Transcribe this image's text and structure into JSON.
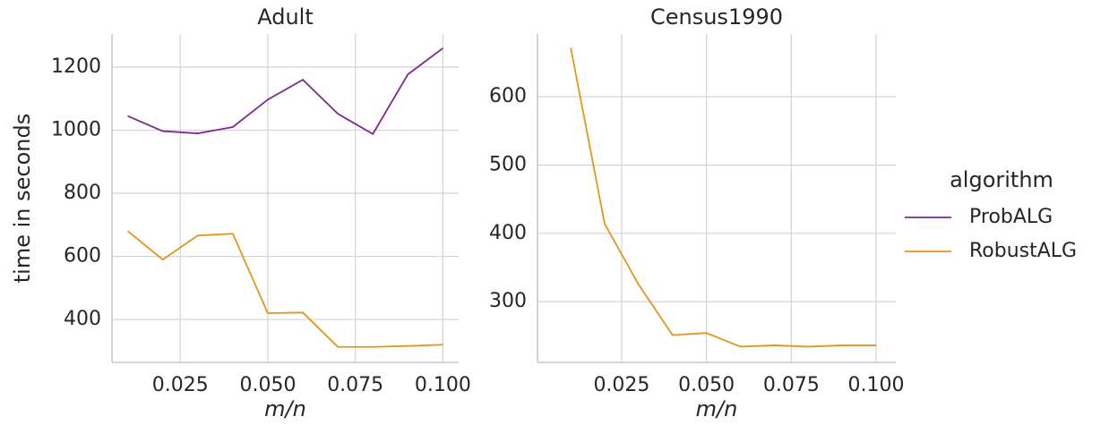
{
  "chart_data": [
    {
      "type": "line",
      "title": "Adult",
      "xlabel": "m/n",
      "ylabel": "time in seconds",
      "x": [
        0.01,
        0.02,
        0.03,
        0.04,
        0.05,
        0.06,
        0.07,
        0.08,
        0.09,
        0.1
      ],
      "series": [
        {
          "name": "ProbALG",
          "color": "#7e2a8e",
          "values": [
            1045,
            997,
            990,
            1010,
            1097,
            1160,
            1052,
            988,
            1177,
            1260
          ]
        },
        {
          "name": "RobustALG",
          "color": "#e3951c",
          "values": [
            680,
            590,
            666,
            672,
            420,
            422,
            313,
            313,
            316,
            320
          ]
        }
      ],
      "xlim": [
        0.0055,
        0.1045
      ],
      "xticks": [
        0.025,
        {
          "value": 0.05,
          "label": "0.050"
        },
        0.075,
        {
          "value": 0.1,
          "label": "0.100"
        }
      ],
      "ylim": [
        264,
        1305
      ],
      "yticks": [
        400,
        600,
        800,
        1000,
        1200
      ],
      "grid": true,
      "legend_title": "algorithm"
    },
    {
      "type": "line",
      "title": "Census1990",
      "xlabel": "m/n",
      "x": [
        0.01,
        0.02,
        0.03,
        0.04,
        0.05,
        0.06,
        0.07,
        0.08,
        0.09,
        0.1
      ],
      "series": [
        {
          "name": "RobustALG",
          "color": "#e3951c",
          "values": [
            672,
            414,
            325,
            251,
            254,
            234,
            236,
            234,
            236,
            236
          ]
        }
      ],
      "xlim": [
        0.0002,
        0.1058
      ],
      "xticks": [
        0.025,
        {
          "value": 0.05,
          "label": "0.050"
        },
        0.075,
        {
          "value": 0.1,
          "label": "0.100"
        }
      ],
      "ylim": [
        211,
        692
      ],
      "yticks": [
        300,
        400,
        500,
        600
      ],
      "grid": true
    }
  ]
}
